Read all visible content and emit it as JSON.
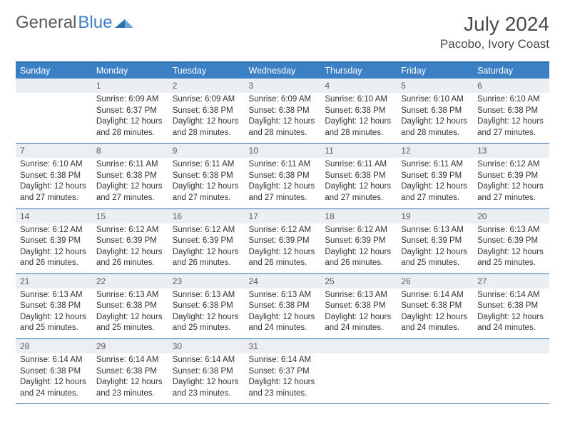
{
  "brand": {
    "part1": "General",
    "part2": "Blue"
  },
  "title": "July 2024",
  "location": "Pacobo, Ivory Coast",
  "colors": {
    "header_bg": "#3b7fc4",
    "header_text": "#ffffff",
    "daynum_bg": "#eceff1",
    "rule": "#2f6fab",
    "text": "#333333"
  },
  "day_names": [
    "Sunday",
    "Monday",
    "Tuesday",
    "Wednesday",
    "Thursday",
    "Friday",
    "Saturday"
  ],
  "start_offset": 1,
  "weeks": 5,
  "days": [
    {
      "n": 1,
      "sr": "6:09 AM",
      "ss": "6:37 PM",
      "dl": "12 hours and 28 minutes."
    },
    {
      "n": 2,
      "sr": "6:09 AM",
      "ss": "6:38 PM",
      "dl": "12 hours and 28 minutes."
    },
    {
      "n": 3,
      "sr": "6:09 AM",
      "ss": "6:38 PM",
      "dl": "12 hours and 28 minutes."
    },
    {
      "n": 4,
      "sr": "6:10 AM",
      "ss": "6:38 PM",
      "dl": "12 hours and 28 minutes."
    },
    {
      "n": 5,
      "sr": "6:10 AM",
      "ss": "6:38 PM",
      "dl": "12 hours and 28 minutes."
    },
    {
      "n": 6,
      "sr": "6:10 AM",
      "ss": "6:38 PM",
      "dl": "12 hours and 27 minutes."
    },
    {
      "n": 7,
      "sr": "6:10 AM",
      "ss": "6:38 PM",
      "dl": "12 hours and 27 minutes."
    },
    {
      "n": 8,
      "sr": "6:11 AM",
      "ss": "6:38 PM",
      "dl": "12 hours and 27 minutes."
    },
    {
      "n": 9,
      "sr": "6:11 AM",
      "ss": "6:38 PM",
      "dl": "12 hours and 27 minutes."
    },
    {
      "n": 10,
      "sr": "6:11 AM",
      "ss": "6:38 PM",
      "dl": "12 hours and 27 minutes."
    },
    {
      "n": 11,
      "sr": "6:11 AM",
      "ss": "6:38 PM",
      "dl": "12 hours and 27 minutes."
    },
    {
      "n": 12,
      "sr": "6:11 AM",
      "ss": "6:39 PM",
      "dl": "12 hours and 27 minutes."
    },
    {
      "n": 13,
      "sr": "6:12 AM",
      "ss": "6:39 PM",
      "dl": "12 hours and 27 minutes."
    },
    {
      "n": 14,
      "sr": "6:12 AM",
      "ss": "6:39 PM",
      "dl": "12 hours and 26 minutes."
    },
    {
      "n": 15,
      "sr": "6:12 AM",
      "ss": "6:39 PM",
      "dl": "12 hours and 26 minutes."
    },
    {
      "n": 16,
      "sr": "6:12 AM",
      "ss": "6:39 PM",
      "dl": "12 hours and 26 minutes."
    },
    {
      "n": 17,
      "sr": "6:12 AM",
      "ss": "6:39 PM",
      "dl": "12 hours and 26 minutes."
    },
    {
      "n": 18,
      "sr": "6:12 AM",
      "ss": "6:39 PM",
      "dl": "12 hours and 26 minutes."
    },
    {
      "n": 19,
      "sr": "6:13 AM",
      "ss": "6:39 PM",
      "dl": "12 hours and 25 minutes."
    },
    {
      "n": 20,
      "sr": "6:13 AM",
      "ss": "6:39 PM",
      "dl": "12 hours and 25 minutes."
    },
    {
      "n": 21,
      "sr": "6:13 AM",
      "ss": "6:38 PM",
      "dl": "12 hours and 25 minutes."
    },
    {
      "n": 22,
      "sr": "6:13 AM",
      "ss": "6:38 PM",
      "dl": "12 hours and 25 minutes."
    },
    {
      "n": 23,
      "sr": "6:13 AM",
      "ss": "6:38 PM",
      "dl": "12 hours and 25 minutes."
    },
    {
      "n": 24,
      "sr": "6:13 AM",
      "ss": "6:38 PM",
      "dl": "12 hours and 24 minutes."
    },
    {
      "n": 25,
      "sr": "6:13 AM",
      "ss": "6:38 PM",
      "dl": "12 hours and 24 minutes."
    },
    {
      "n": 26,
      "sr": "6:14 AM",
      "ss": "6:38 PM",
      "dl": "12 hours and 24 minutes."
    },
    {
      "n": 27,
      "sr": "6:14 AM",
      "ss": "6:38 PM",
      "dl": "12 hours and 24 minutes."
    },
    {
      "n": 28,
      "sr": "6:14 AM",
      "ss": "6:38 PM",
      "dl": "12 hours and 24 minutes."
    },
    {
      "n": 29,
      "sr": "6:14 AM",
      "ss": "6:38 PM",
      "dl": "12 hours and 23 minutes."
    },
    {
      "n": 30,
      "sr": "6:14 AM",
      "ss": "6:38 PM",
      "dl": "12 hours and 23 minutes."
    },
    {
      "n": 31,
      "sr": "6:14 AM",
      "ss": "6:37 PM",
      "dl": "12 hours and 23 minutes."
    }
  ],
  "labels": {
    "sunrise": "Sunrise:",
    "sunset": "Sunset:",
    "daylight": "Daylight:"
  }
}
